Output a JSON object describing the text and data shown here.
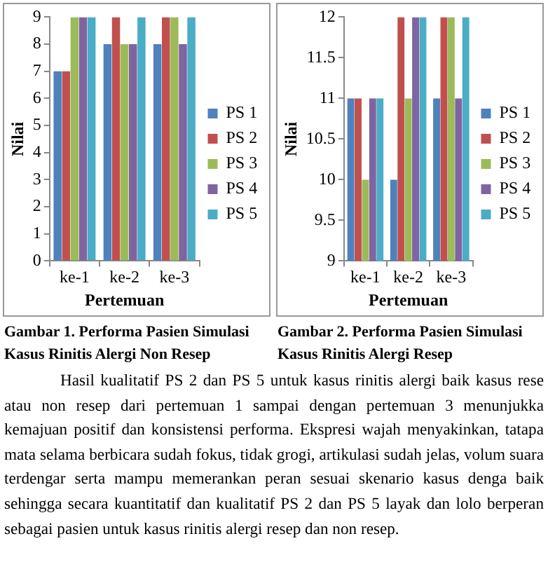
{
  "chart_data": [
    {
      "type": "bar",
      "categories": [
        "ke-1",
        "ke-2",
        "ke-3"
      ],
      "xlabel": "Pertemuan",
      "ylabel": "Nilai",
      "series": [
        {
          "name": "PS 1",
          "color": "#4f81bd",
          "values": [
            7,
            8,
            8
          ]
        },
        {
          "name": "PS 2",
          "color": "#c0504d",
          "values": [
            7,
            9,
            9
          ]
        },
        {
          "name": "PS 3",
          "color": "#9bbb59",
          "values": [
            9,
            8,
            9
          ]
        },
        {
          "name": "PS 4",
          "color": "#8064a2",
          "values": [
            9,
            8,
            8
          ]
        },
        {
          "name": "PS 5",
          "color": "#4bacc6",
          "values": [
            9,
            9,
            9
          ]
        }
      ],
      "ylim": [
        0,
        9
      ],
      "yticks": [
        0,
        1,
        2,
        3,
        4,
        5,
        6,
        7,
        8,
        9
      ],
      "grid": false,
      "legend": "right",
      "annotations": [
        "Gambar 1. Performa Pasien Simulasi Kasus Rinitis Alergi Non Resep"
      ]
    },
    {
      "type": "bar",
      "categories": [
        "ke-1",
        "ke-2",
        "ke-3"
      ],
      "xlabel": "Pertemuan",
      "ylabel": "Nilai",
      "series": [
        {
          "name": "PS 1",
          "color": "#4f81bd",
          "values": [
            11,
            10,
            11
          ]
        },
        {
          "name": "PS 2",
          "color": "#c0504d",
          "values": [
            11,
            12,
            12
          ]
        },
        {
          "name": "PS 3",
          "color": "#9bbb59",
          "values": [
            10,
            11,
            12
          ]
        },
        {
          "name": "PS 4",
          "color": "#8064a2",
          "values": [
            11,
            12,
            11
          ]
        },
        {
          "name": "PS 5",
          "color": "#4bacc6",
          "values": [
            11,
            12,
            12
          ]
        }
      ],
      "ylim": [
        9,
        12
      ],
      "yticks": [
        9,
        9.5,
        10,
        10.5,
        11,
        11.5,
        12
      ],
      "grid": false,
      "legend": "right",
      "annotations": [
        "Gambar 2. Performa Pasien Simulasi Kasus Rinitis Alergi Resep",
        "Hasil kualitatif PS 2 dan PS 5 untuk kasus rinitis alergi baik kasus rese atau non resep dari pertemuan 1 sampai dengan pertemuan 3 menunjukka kemajuan positif dan konsistensi performa. Ekspresi wajah menyakinkan, tatapa mata selama berbicara sudah fokus, tidak grogi, artikulasi sudah jelas, volum suara terdengar serta mampu memerankan peran sesuai skenario kasus denga baik sehingga secara kuantitatif dan kualitatif PS 2 dan PS 5 layak dan lolo berperan sebagai pasien untuk kasus rinitis alergi resep dan non resep."
      ]
    }
  ]
}
